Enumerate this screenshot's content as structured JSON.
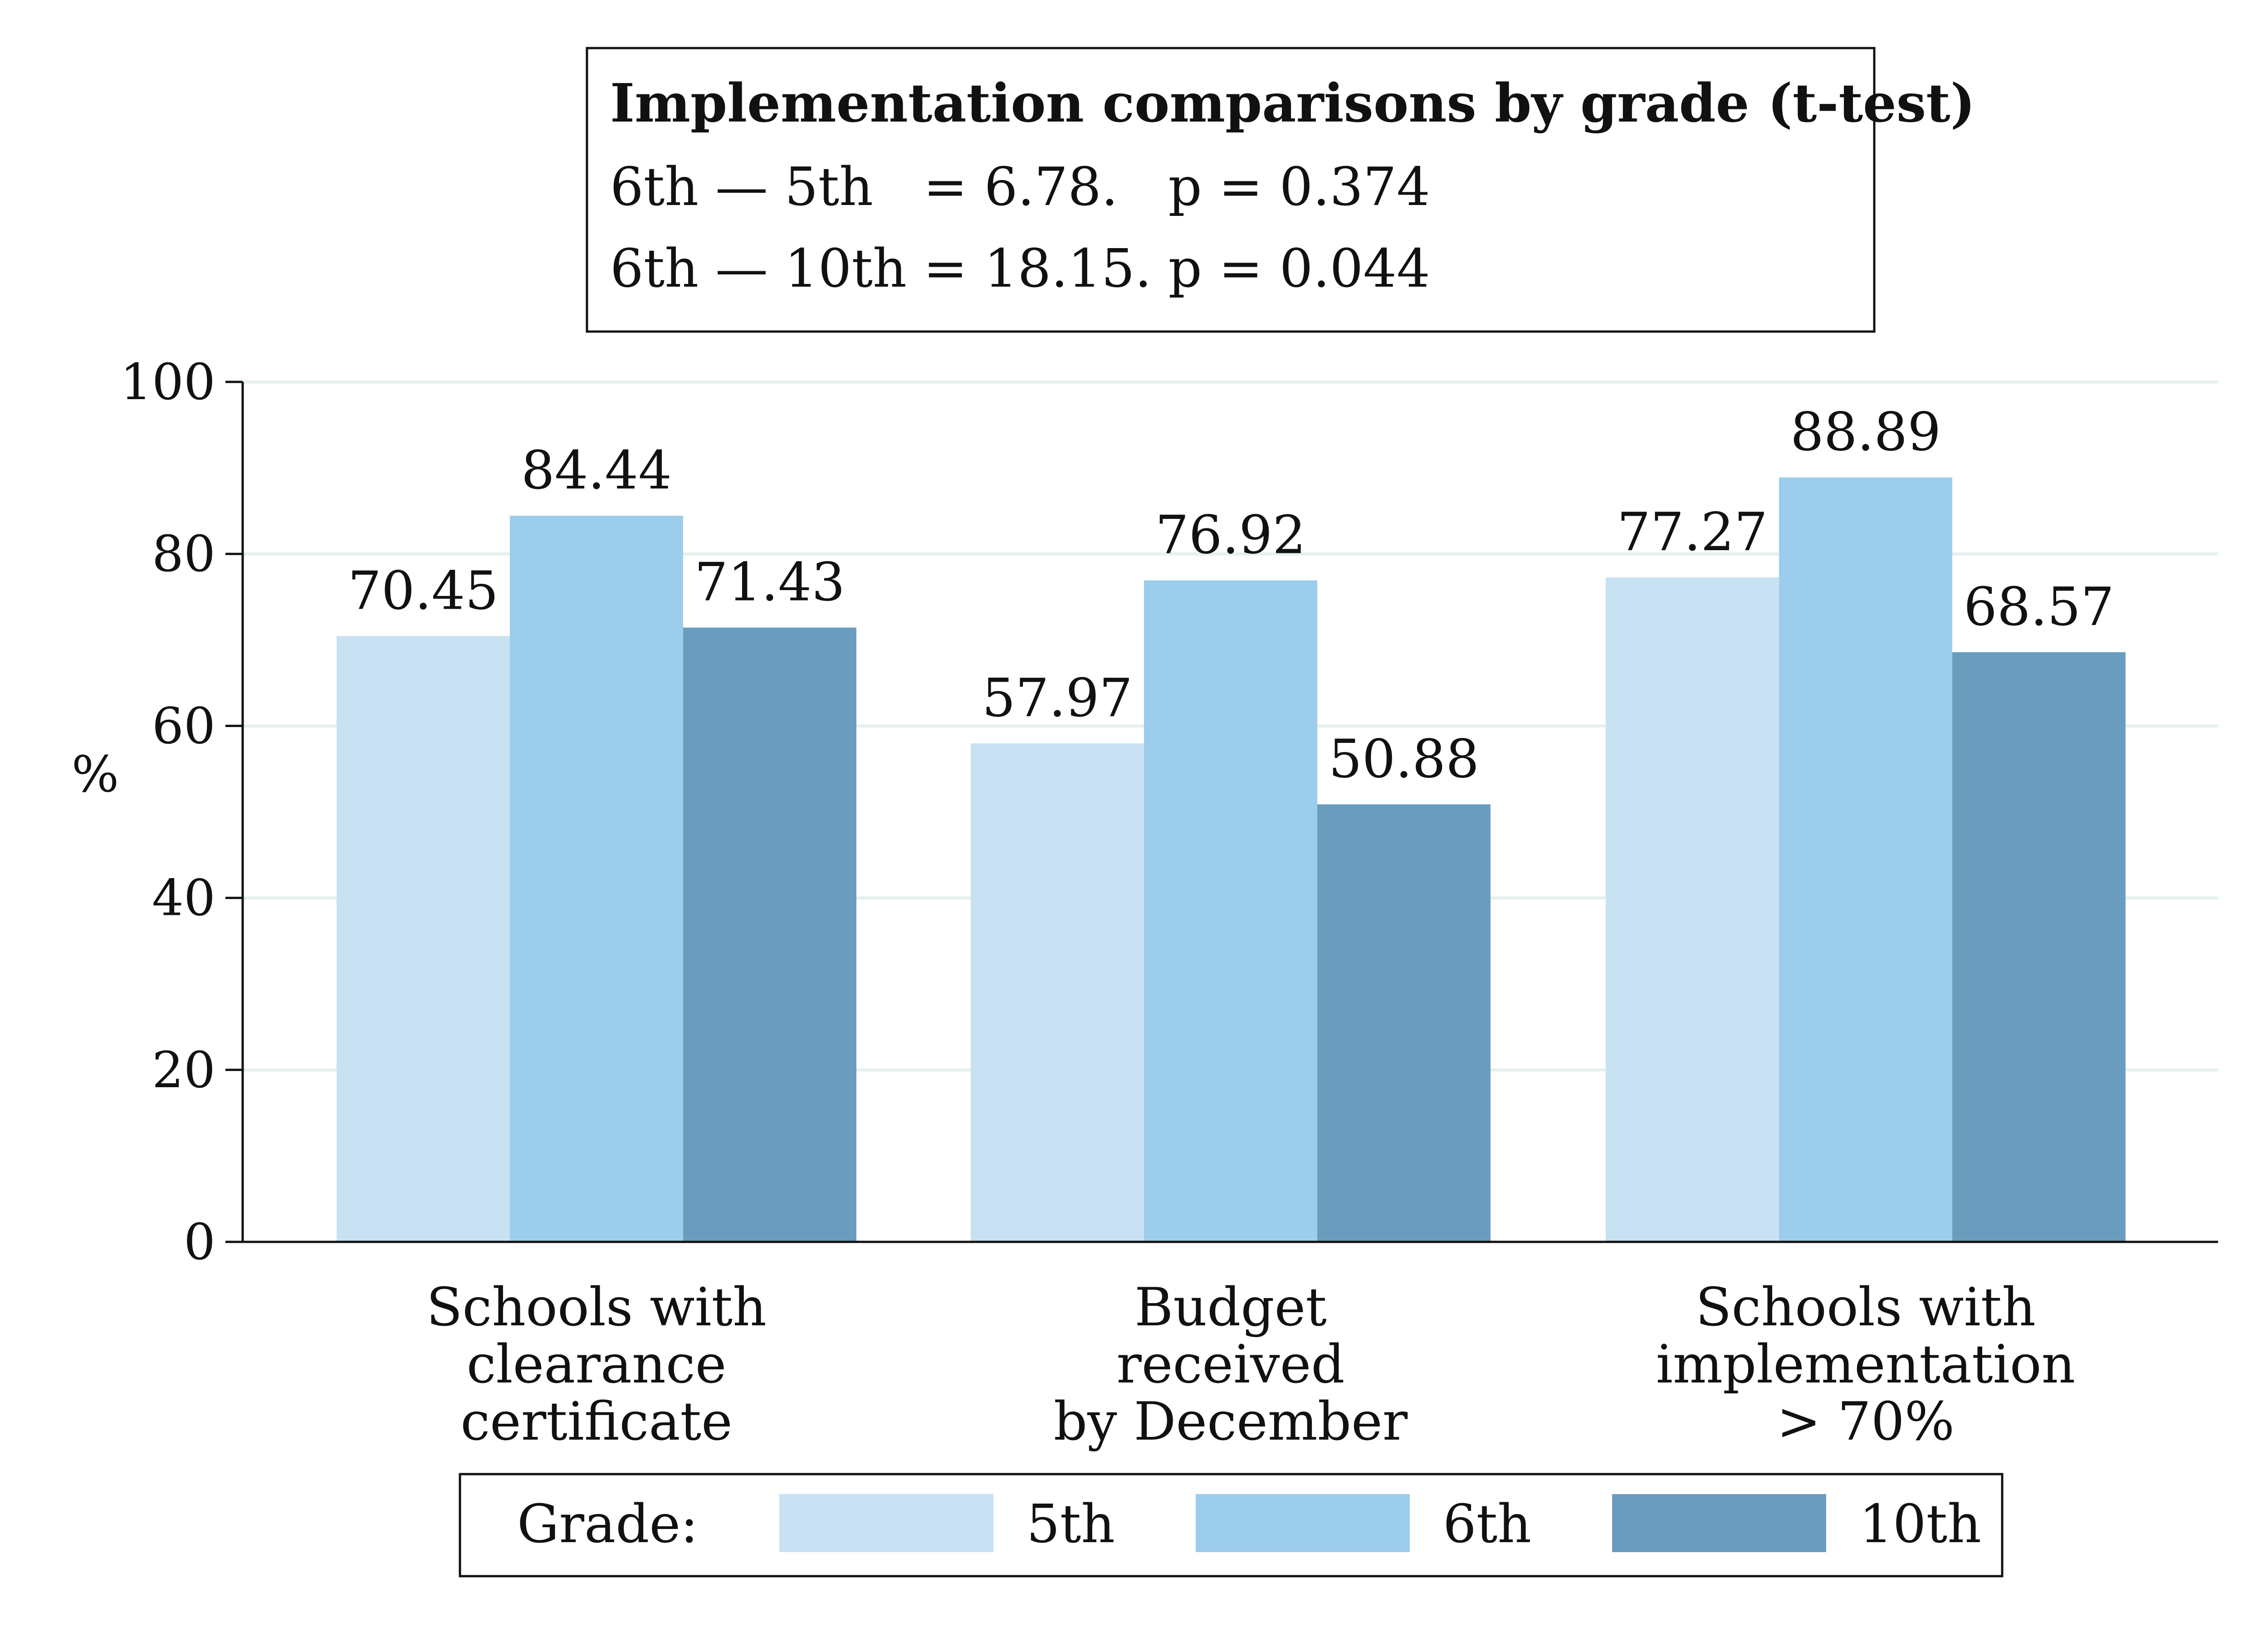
{
  "annotation": {
    "title": "Implementation comparisons by grade (t-test)",
    "lines": [
      "6th — 5th   = 6.78.   p = 0.374",
      "6th — 10th = 18.15. p = 0.044"
    ]
  },
  "legend": {
    "label": "Grade:",
    "placement": "bottom"
  },
  "colors": {
    "5th": "#c8e1f3",
    "6th": "#9dcdec",
    "10th": "#6a9dbd",
    "grid": "#e6f0f0",
    "axis": "#111111"
  },
  "chart_data": {
    "type": "bar",
    "title": "",
    "xlabel": "",
    "ylabel": "%",
    "ylim": [
      0,
      100
    ],
    "yticks": [
      0,
      20,
      40,
      60,
      80,
      100
    ],
    "grid": true,
    "legend_placement": "bottom",
    "categories": [
      [
        "Schools with",
        "clearance",
        "certificate"
      ],
      [
        "Budget",
        "received",
        "by December"
      ],
      [
        "Schools with",
        "implementation",
        "> 70%"
      ]
    ],
    "series": [
      {
        "name": "5th",
        "values": [
          70.45,
          57.97,
          77.27
        ]
      },
      {
        "name": "6th",
        "values": [
          84.44,
          76.92,
          88.89
        ]
      },
      {
        "name": "10th",
        "values": [
          71.43,
          50.88,
          68.57
        ]
      }
    ]
  }
}
